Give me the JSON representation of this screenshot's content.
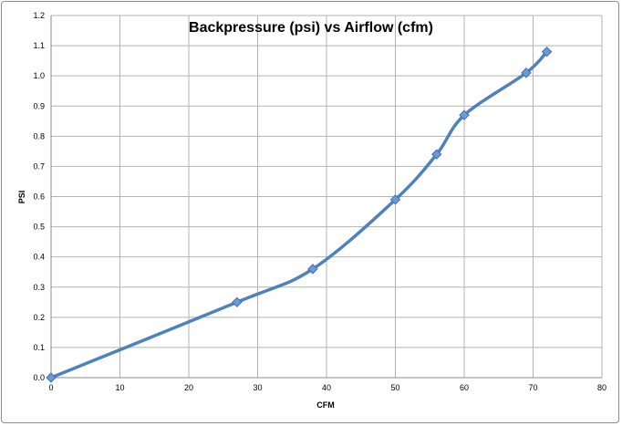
{
  "chart_data": {
    "type": "line",
    "title": "Backpressure (psi) vs Airflow (cfm)",
    "xlabel": "CFM",
    "ylabel": "PSI",
    "xlim": [
      0,
      80
    ],
    "ylim": [
      0,
      1.2
    ],
    "x_ticks": [
      "0",
      "10",
      "20",
      "30",
      "40",
      "50",
      "60",
      "70",
      "80"
    ],
    "y_ticks": [
      "0.0",
      "0.1",
      "0.2",
      "0.3",
      "0.4",
      "0.5",
      "0.6",
      "0.7",
      "0.8",
      "0.9",
      "1.0",
      "1.1",
      "1.2"
    ],
    "grid": true,
    "smooth": true,
    "line_color": "#4f81bd",
    "marker": "diamond",
    "series": [
      {
        "points": [
          [
            0,
            0.0
          ],
          [
            27,
            0.25
          ],
          [
            38,
            0.36
          ],
          [
            50,
            0.59
          ],
          [
            56,
            0.74
          ],
          [
            60,
            0.87
          ],
          [
            69,
            1.01
          ],
          [
            72,
            1.08
          ]
        ]
      }
    ]
  }
}
